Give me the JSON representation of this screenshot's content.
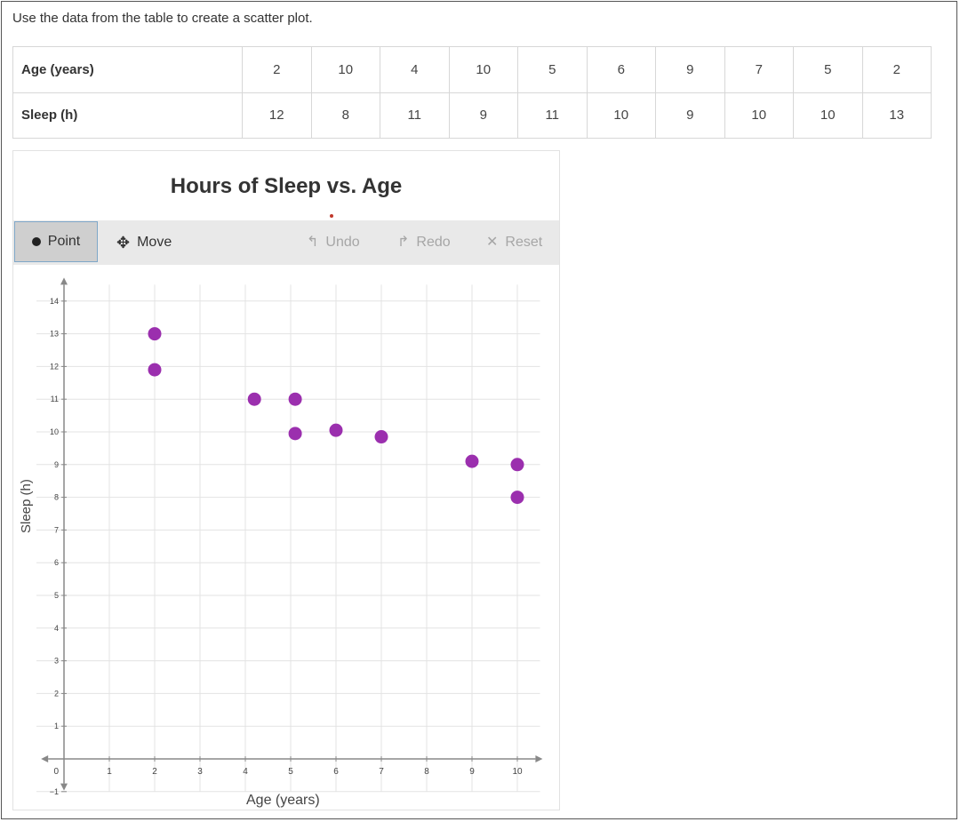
{
  "instruction": "Use the data from the table to create a scatter plot.",
  "table": {
    "row1_label": "Age (years)",
    "row2_label": "Sleep (h)",
    "ages": [
      "2",
      "10",
      "4",
      "10",
      "5",
      "6",
      "9",
      "7",
      "5",
      "2"
    ],
    "sleep": [
      "12",
      "8",
      "11",
      "9",
      "11",
      "10",
      "9",
      "10",
      "10",
      "13"
    ]
  },
  "toolbar": {
    "point_label": "Point",
    "move_label": "Move",
    "undo_label": "Undo",
    "redo_label": "Redo",
    "reset_label": "Reset"
  },
  "colors": {
    "point": "#9b2fae",
    "grid": "#e3e3e3",
    "axis": "#888888",
    "active_tool_border": "#7fa7c8"
  },
  "chart_data": {
    "type": "scatter",
    "title": "Hours of Sleep vs. Age",
    "xlabel": "Age (years)",
    "ylabel": "Sleep (h)",
    "xlim": [
      -1,
      10.5
    ],
    "ylim": [
      -1,
      14.5
    ],
    "x_ticks": [
      1,
      2,
      3,
      4,
      5,
      6,
      7,
      8,
      9,
      10
    ],
    "y_ticks": [
      -1,
      1,
      2,
      3,
      4,
      5,
      6,
      7,
      8,
      9,
      10,
      11,
      12,
      13,
      14
    ],
    "origin_label": "0",
    "grid": true,
    "points": [
      {
        "x": 2,
        "y": 13
      },
      {
        "x": 2,
        "y": 11.9
      },
      {
        "x": 4.2,
        "y": 11
      },
      {
        "x": 5.1,
        "y": 11
      },
      {
        "x": 5.1,
        "y": 9.95
      },
      {
        "x": 6,
        "y": 10.05
      },
      {
        "x": 7,
        "y": 9.85
      },
      {
        "x": 9,
        "y": 9.1
      },
      {
        "x": 10,
        "y": 9
      },
      {
        "x": 10,
        "y": 8
      }
    ]
  }
}
